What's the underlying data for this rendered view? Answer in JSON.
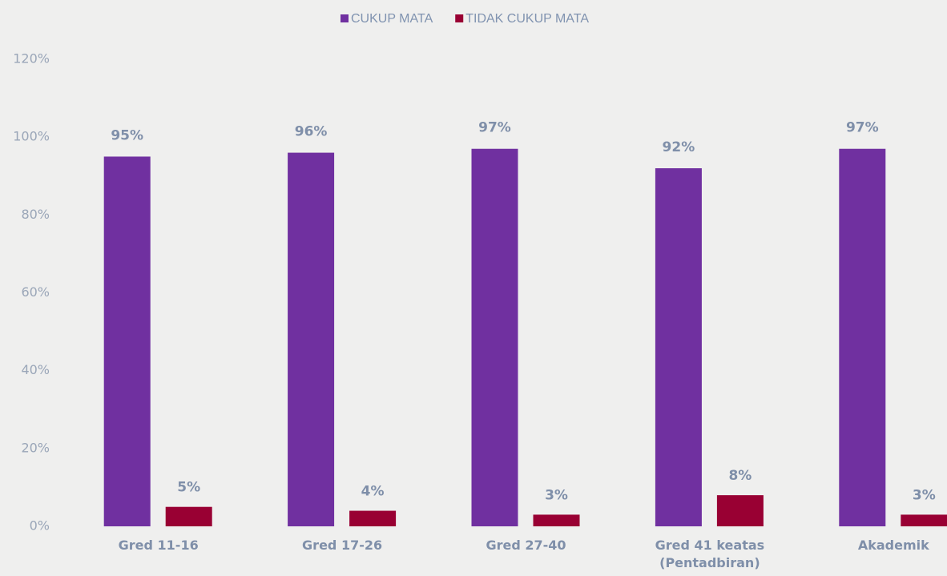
{
  "chart_data": {
    "type": "bar",
    "categories": [
      "Gred 11-16",
      "Gred 17-26",
      "Gred 27-40",
      "Gred 41 keatas (Pentadbiran)",
      "Akademik"
    ],
    "series": [
      {
        "name": "CUKUP MATA",
        "color": "#7030a0",
        "values": [
          95,
          96,
          97,
          92,
          97
        ],
        "value_labels": [
          "95%",
          "96%",
          "97%",
          "92%",
          "97%"
        ]
      },
      {
        "name": "TIDAK CUKUP MATA",
        "color": "#990033",
        "values": [
          5,
          4,
          3,
          8,
          3
        ],
        "value_labels": [
          "5%",
          "4%",
          "3%",
          "8%",
          "3%"
        ]
      }
    ],
    "ylim": [
      0,
      120
    ],
    "yticks": [
      {
        "value": 0,
        "label": "0%"
      },
      {
        "value": 20,
        "label": "20%"
      },
      {
        "value": 40,
        "label": "40%"
      },
      {
        "value": 60,
        "label": "60%"
      },
      {
        "value": 80,
        "label": "80%"
      },
      {
        "value": 100,
        "label": "100%"
      },
      {
        "value": 120,
        "label": "120%"
      }
    ],
    "grid": false,
    "legend": "top"
  }
}
